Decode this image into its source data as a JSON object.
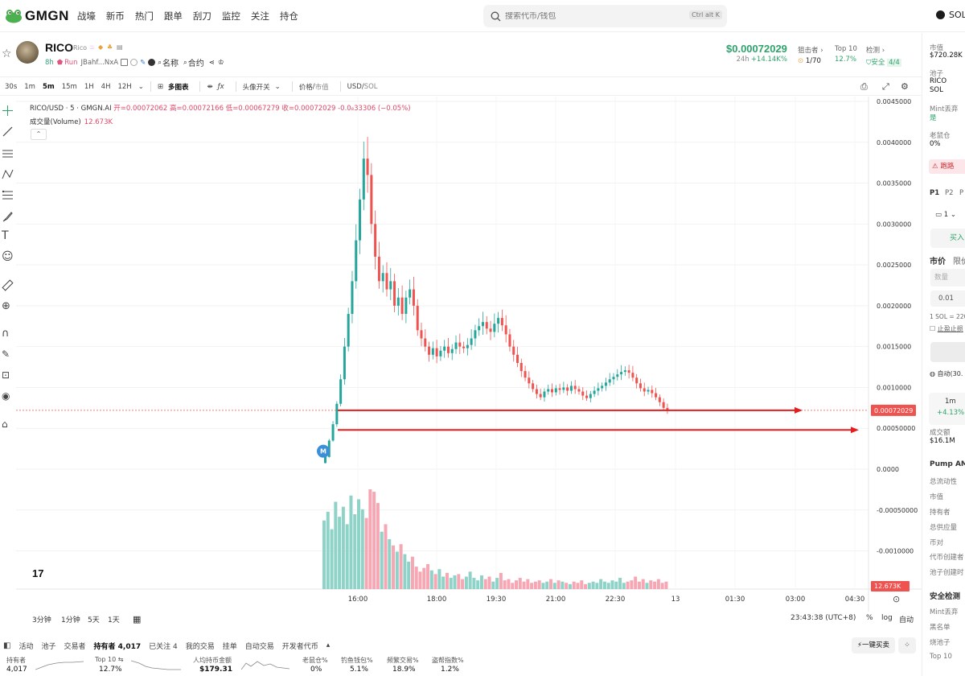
{
  "nav": {
    "logo_text": "GMGN",
    "items": [
      "战壕",
      "新币",
      "热门",
      "跟单",
      "刮刀",
      "监控",
      "关注",
      "持仓"
    ],
    "search_placeholder": "搜索代币/钱包",
    "search_shortcut": "Ctrl alt K",
    "chain": "SOL"
  },
  "token": {
    "name": "RICO",
    "sub": "Rico",
    "age": "8h",
    "run_label": "Run",
    "address": "JBahf...NxA",
    "name_link": "名称",
    "contract_link": "合约",
    "price": "$0.00072029",
    "change_label": "24h",
    "change": "+14.14K%",
    "snipers_label": "狙击者",
    "snipers_value": "1/70",
    "top10_label": "Top 10",
    "top10_value": "12.7%",
    "check_label": "检测",
    "check_value": "安全",
    "check_score": "4/4"
  },
  "toolbar": {
    "timeframes": [
      "30s",
      "1m",
      "5m",
      "15m",
      "1H",
      "4H",
      "12H"
    ],
    "active_tf": "5m",
    "multi_chart": "多图表",
    "position_toggle": "头像开关",
    "price_mcap_a": "价格",
    "price_mcap_b": "市值",
    "pair_a": "USD",
    "pair_b": "SOL"
  },
  "chart_header": {
    "symbol": "RICO/USD · 5 · GMGN.AI",
    "open": "开=0.00072062",
    "high": "高=0.00072166",
    "low": "低=0.00067279",
    "close": "收=0.00072029",
    "change": "-0.0₈33306 (−0.05%)",
    "volume_label": "成交量(Volume)",
    "volume_value": "12.673K"
  },
  "chart_data": {
    "type": "candlestick",
    "y_ticks": [
      "0.0045000",
      "0.0040000",
      "0.0035000",
      "0.0030000",
      "0.0025000",
      "0.0020000",
      "0.0015000",
      "0.0010000",
      "0.00050000",
      "0.0000",
      "-0.00050000",
      "-0.0010000"
    ],
    "x_ticks": [
      "16:00",
      "18:00",
      "19:30",
      "21:00",
      "22:30",
      "13",
      "01:30",
      "03:00",
      "04:30"
    ],
    "last_price_label": "0.00072029",
    "last_volume_label": "12.673K",
    "marker": "M",
    "closes": [
      0.00015,
      0.00035,
      0.00055,
      0.0008,
      0.0011,
      0.0015,
      0.0019,
      0.0023,
      0.0028,
      0.0033,
      0.0038,
      0.0036,
      0.003,
      0.0026,
      0.0023,
      0.0024,
      0.0022,
      0.0023,
      0.002,
      0.0021,
      0.0019,
      0.0021,
      0.0022,
      0.002,
      0.0017,
      0.0016,
      0.0015,
      0.0014,
      0.00148,
      0.00138,
      0.00145,
      0.0015,
      0.00142,
      0.00147,
      0.00155,
      0.0015,
      0.00148,
      0.00152,
      0.0016,
      0.0017,
      0.00175,
      0.0018,
      0.00172,
      0.00168,
      0.00178,
      0.00185,
      0.00176,
      0.00165,
      0.0015,
      0.0014,
      0.0013,
      0.0012,
      0.00112,
      0.00105,
      0.00098,
      0.00092,
      0.00088,
      0.00095,
      0.00098,
      0.00094,
      0.00099,
      0.00097,
      0.001,
      0.00096,
      0.00102,
      0.00098,
      0.00095,
      0.0009,
      0.00087,
      0.00092,
      0.00096,
      0.00099,
      0.00102,
      0.00106,
      0.0011,
      0.00113,
      0.00116,
      0.00119,
      0.00121,
      0.00118,
      0.00112,
      0.00105,
      0.00099,
      0.00095,
      0.00097,
      0.00093,
      0.00088,
      0.00082,
      0.00075,
      0.00072
    ],
    "volumes": [
      0.55,
      0.62,
      0.48,
      0.7,
      0.58,
      0.66,
      0.52,
      0.75,
      0.6,
      0.72,
      0.64,
      0.57,
      0.8,
      0.78,
      0.69,
      0.46,
      0.52,
      0.4,
      0.35,
      0.3,
      0.36,
      0.28,
      0.22,
      0.26,
      0.18,
      0.14,
      0.17,
      0.2,
      0.15,
      0.12,
      0.16,
      0.1,
      0.13,
      0.09,
      0.11,
      0.12,
      0.08,
      0.1,
      0.14,
      0.09,
      0.07,
      0.11,
      0.08,
      0.1,
      0.06,
      0.09,
      0.13,
      0.07,
      0.08,
      0.05,
      0.07,
      0.09,
      0.06,
      0.08,
      0.05,
      0.06,
      0.07,
      0.05,
      0.06,
      0.08,
      0.05,
      0.07,
      0.06,
      0.05,
      0.04,
      0.06,
      0.05,
      0.07,
      0.04,
      0.05,
      0.06,
      0.05,
      0.08,
      0.06,
      0.05,
      0.07,
      0.06,
      0.09,
      0.05,
      0.06,
      0.07,
      0.1,
      0.06,
      0.08,
      0.05,
      0.07,
      0.06,
      0.08,
      0.05,
      0.06
    ]
  },
  "ranges": {
    "r1": "3分钟",
    "r2": "1分钟",
    "r3": "5天",
    "r4": "1天",
    "clock": "23:43:38 (UTC+8)",
    "pct": "%",
    "log": "log",
    "auto": "自动"
  },
  "bottom_tabs": {
    "activity": "活动",
    "pool": "池子",
    "traders": "交易者",
    "holders": "持有者 4,017",
    "following": "已关注 4",
    "my_trades": "我的交易",
    "orders": "挂单",
    "auto_trade": "自动交易",
    "dev_tokens": "开发者代币",
    "onekey": "一键买卖"
  },
  "bottom_stats": {
    "holders_label": "持有者",
    "holders_value": "4,017",
    "top10_label": "Top 10 ⇆",
    "top10_value": "12.7%",
    "avg_label": "人均持币金额",
    "avg_value": "$179.31",
    "rat_label": "老鼠仓%",
    "rat_value": "0%",
    "phish_label": "钓鱼钱包%",
    "phish_value": "5.1%",
    "freq_label": "频繁交易%",
    "freq_value": "18.9%",
    "bundle_label": "盗帮指数%",
    "bundle_value": "1.2%"
  },
  "right_panel": {
    "mcap_label": "市值",
    "mcap_value": "$720.28K",
    "pool_label": "池子",
    "pool_a": "RICO",
    "pool_b": "SOL",
    "mint_label": "Mint丢弃",
    "mint_value": "是",
    "rat_label": "老鼠仓",
    "rat_value": "0%",
    "escape": "跑路",
    "p1": "P1",
    "p2": "P2",
    "p3": "P",
    "wallet_count": "1",
    "buy": "买入",
    "market": "市价",
    "limit": "限价",
    "qty_placeholder": "数量",
    "amount": "0.01",
    "rate": "1 SOL = 220",
    "stop": "止盈止损",
    "auto": "自动(30.",
    "tf_1m": "1m",
    "tf_1m_change": "+4.13%",
    "volume_label": "成交额",
    "volume_value": "$16.1M",
    "pump_label": "Pump AM",
    "total_liq": "总流动性",
    "mcap2": "市值",
    "holders": "持有者",
    "supply": "总供应量",
    "pair": "币对",
    "creator": "代币创建者",
    "pool_creator": "池子创建时",
    "safety": "安全检测",
    "mint2": "Mint丢弃",
    "blacklist": "黑名单",
    "burn": "烧池子",
    "top10": "Top 10"
  }
}
